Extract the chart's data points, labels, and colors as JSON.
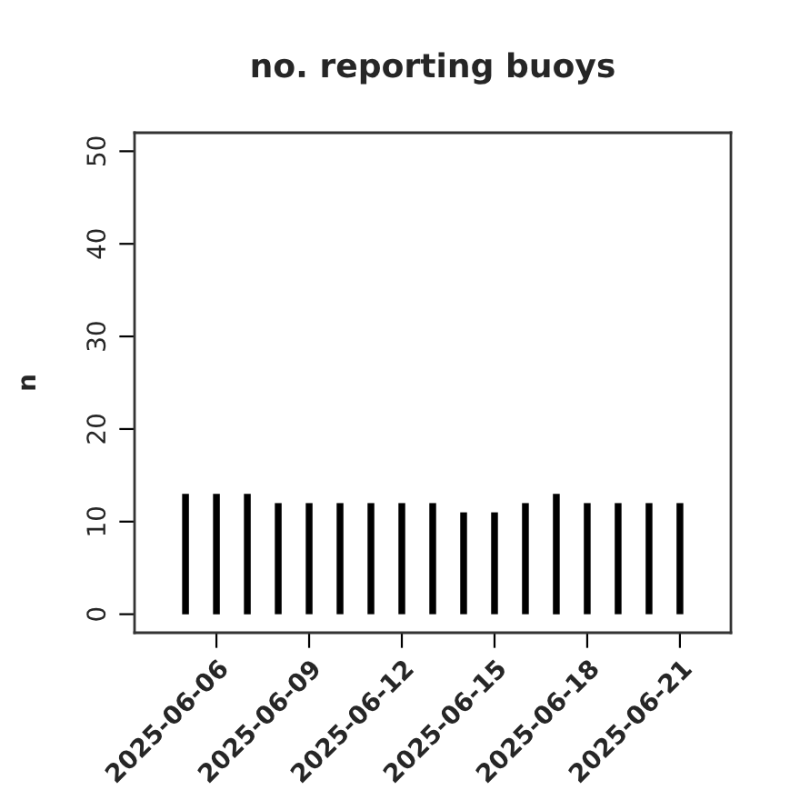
{
  "chart_data": {
    "type": "bar",
    "title": "no. reporting buoys",
    "ylabel": "n",
    "x": [
      "2025-06-05",
      "2025-06-06",
      "2025-06-07",
      "2025-06-08",
      "2025-06-09",
      "2025-06-10",
      "2025-06-11",
      "2025-06-12",
      "2025-06-13",
      "2025-06-14",
      "2025-06-15",
      "2025-06-16",
      "2025-06-17",
      "2025-06-18",
      "2025-06-19",
      "2025-06-20",
      "2025-06-21"
    ],
    "values": [
      13,
      13,
      13,
      12,
      12,
      12,
      12,
      12,
      12,
      11,
      11,
      12,
      13,
      12,
      12,
      12,
      12
    ],
    "color": "#000000",
    "xlim": [
      "2025-06-03T08:24",
      "2025-06-22T15:36"
    ],
    "xticks": [
      {
        "value": "2025-06-06",
        "label": "2025-06-06"
      },
      {
        "value": "2025-06-09",
        "label": "2025-06-09"
      },
      {
        "value": "2025-06-12",
        "label": "2025-06-12"
      },
      {
        "value": "2025-06-15",
        "label": "2025-06-15"
      },
      {
        "value": "2025-06-18",
        "label": "2025-06-18"
      },
      {
        "value": "2025-06-21",
        "label": "2025-06-21"
      }
    ],
    "ylim": [
      -2,
      52
    ],
    "yticks": [
      0,
      10,
      20,
      30,
      40,
      50
    ],
    "grid": false,
    "legend": false
  }
}
